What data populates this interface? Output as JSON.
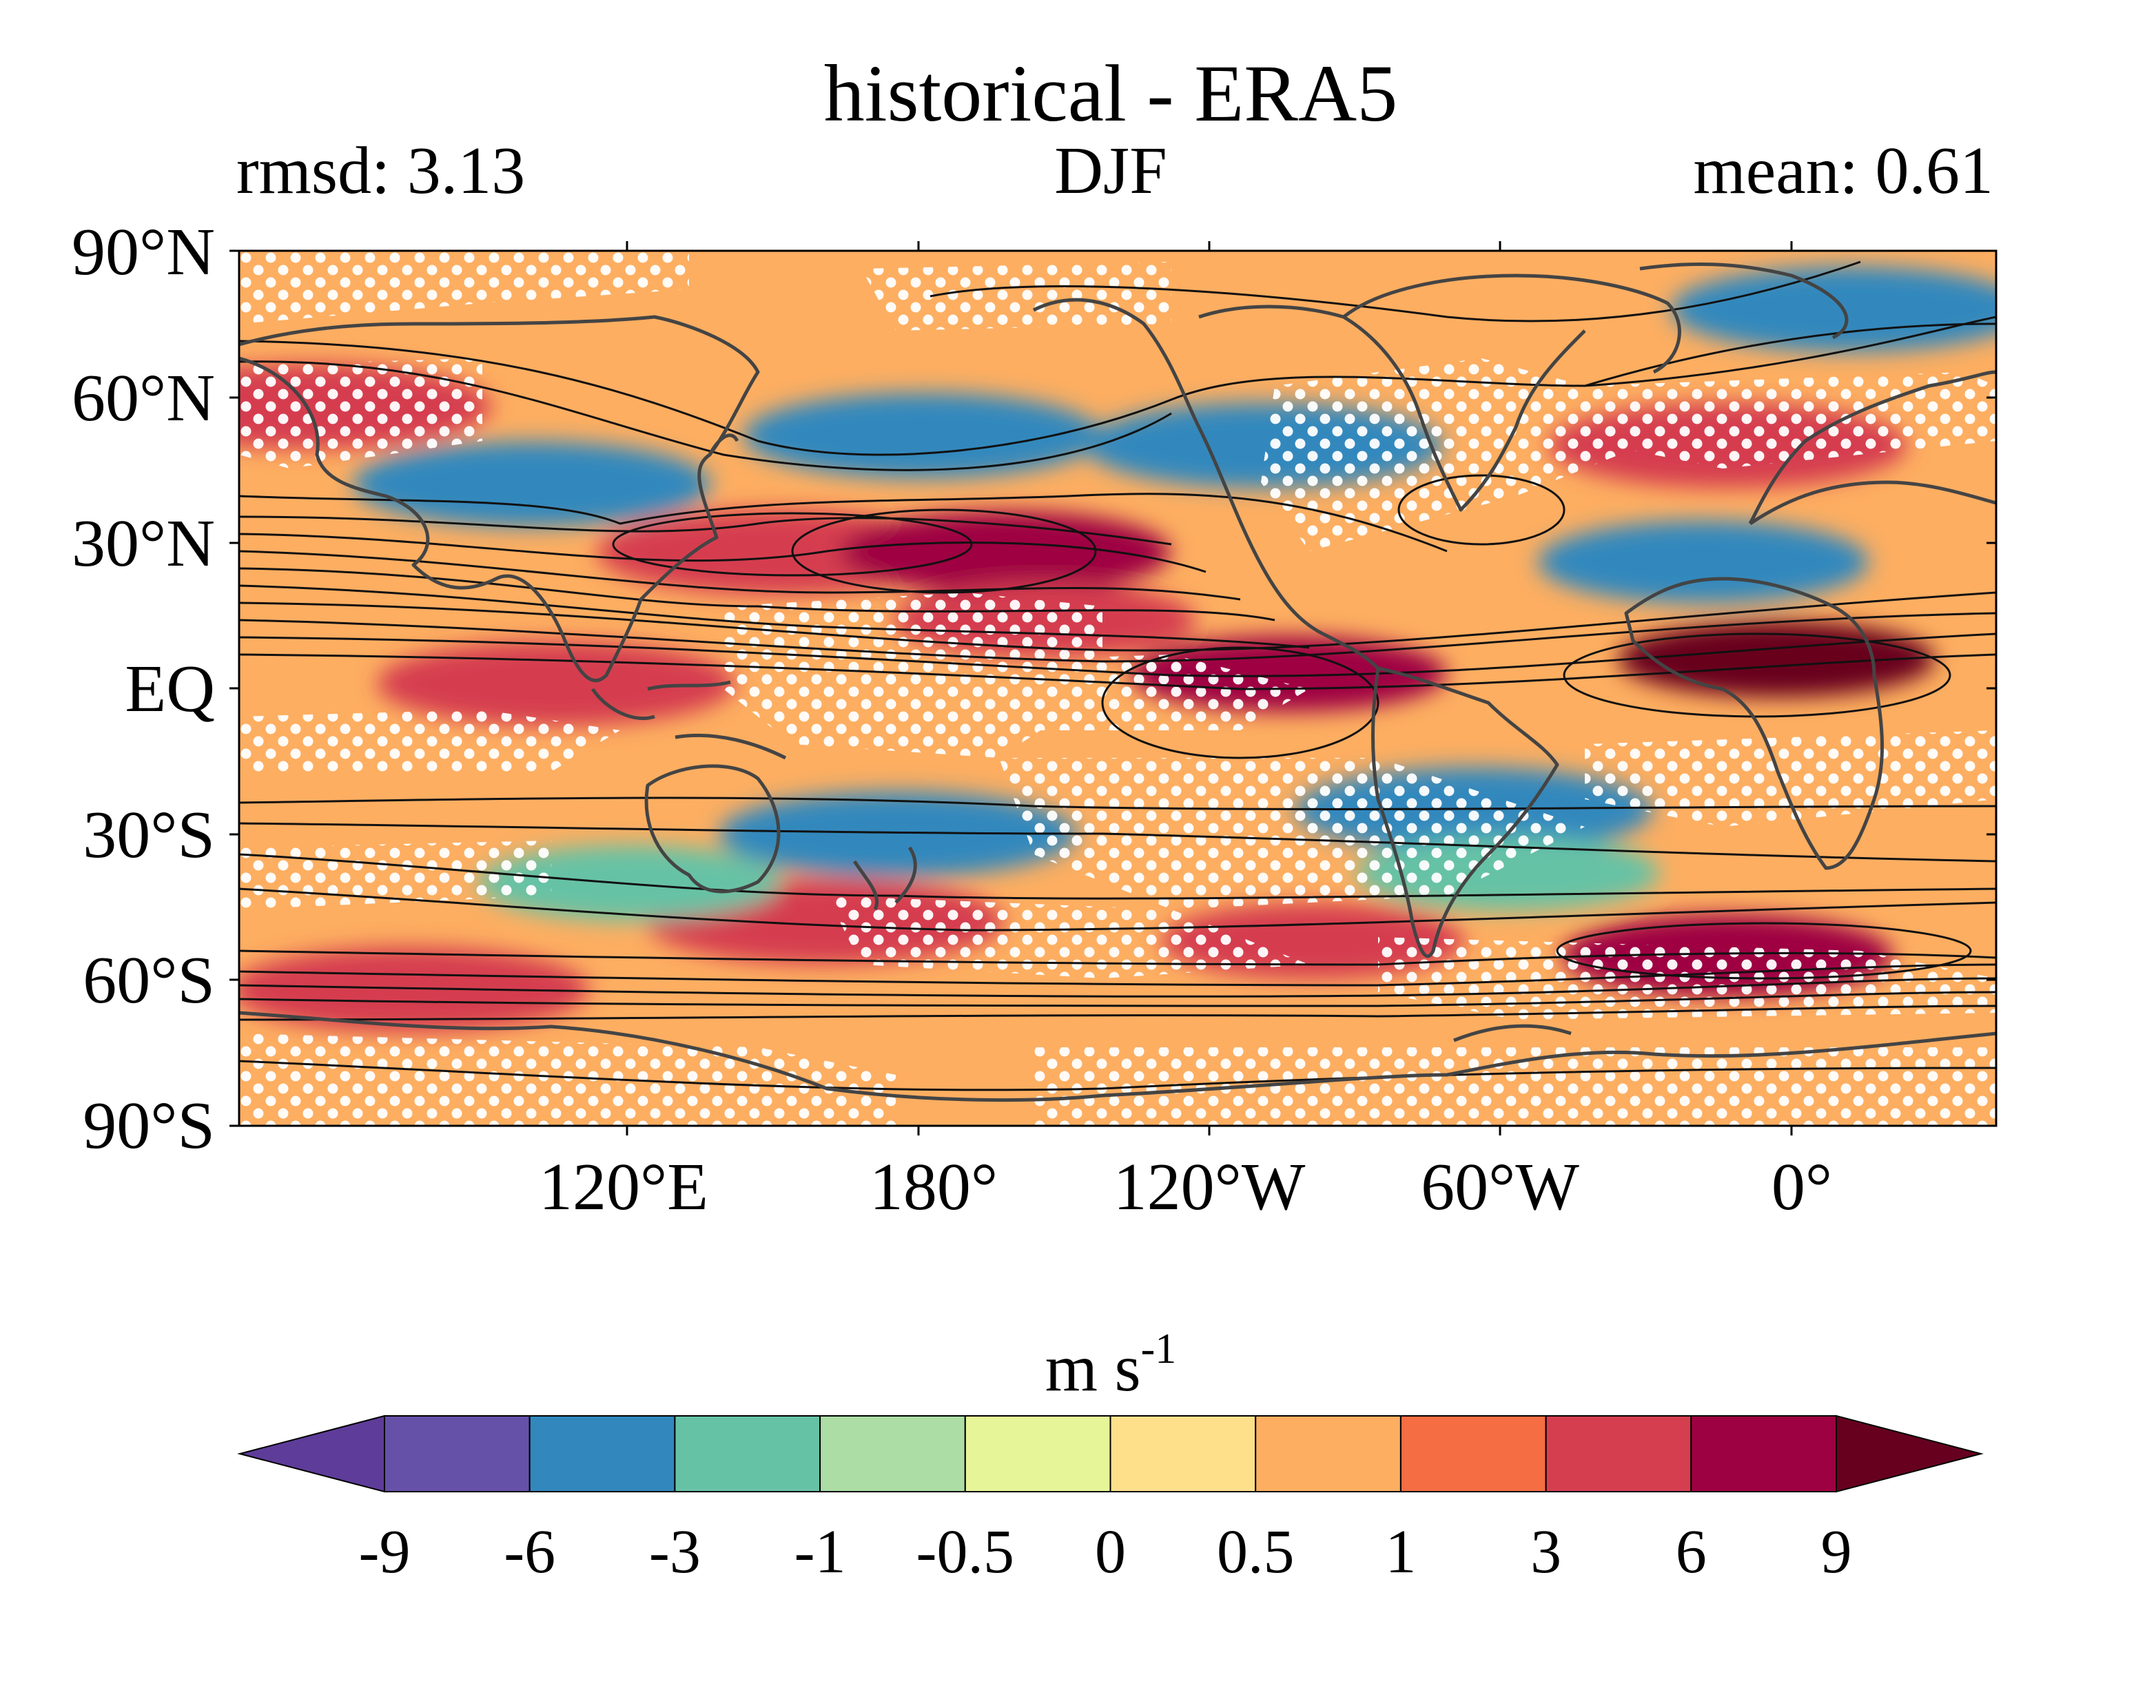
{
  "header": {
    "title": "historical - ERA5",
    "left": "rmsd: 3.13",
    "center": "DJF",
    "right": "mean: 0.61"
  },
  "map": {
    "lat_ticks": [
      "90°N",
      "60°N",
      "30°N",
      "EQ",
      "30°S",
      "60°S",
      "90°S"
    ],
    "lon_ticks": [
      "120°E",
      "180°",
      "120°W",
      "60°W",
      "0°"
    ],
    "lon_range": [
      40,
      400
    ],
    "lat_range": [
      -90,
      90
    ],
    "stippling": "white dots",
    "contours": "black lines"
  },
  "colorbar": {
    "unit_base": "m s",
    "unit_exp": "-1",
    "tick_labels": [
      "-9",
      "-6",
      "-3",
      "-1",
      "-0.5",
      "0",
      "0.5",
      "1",
      "3",
      "6",
      "9"
    ],
    "colors": [
      "#5e3c99",
      "#6651a8",
      "#3288bd",
      "#66c2a5",
      "#abdda4",
      "#e6f598",
      "#fee08b",
      "#fdae61",
      "#f46d43",
      "#d53e4f",
      "#9e0142",
      "#67001f"
    ],
    "extend": "both"
  },
  "chart_data": {
    "type": "heatmap",
    "title": "historical - ERA5",
    "season": "DJF",
    "rmsd": 3.13,
    "mean": 0.61,
    "units": "m s-1",
    "levels": [
      -9,
      -6,
      -3,
      -1,
      -0.5,
      0,
      0.5,
      1,
      3,
      6,
      9
    ],
    "xlim": [
      40,
      400
    ],
    "ylim": [
      -90,
      90
    ],
    "anomalies": [
      {
        "lon": 105,
        "lat": 1,
        "value": 4
      },
      {
        "lon": 150,
        "lat": 28,
        "value": 4
      },
      {
        "lon": 197,
        "lat": 28,
        "value": 7
      },
      {
        "lon": 255,
        "lat": 3,
        "value": 8
      },
      {
        "lon": 355,
        "lat": 6,
        "value": 9
      },
      {
        "lon": 345,
        "lat": 50,
        "value": 5
      },
      {
        "lon": 205,
        "lat": 14,
        "value": 3
      },
      {
        "lon": 250,
        "lat": 50,
        "value": -4
      },
      {
        "lon": 100,
        "lat": 42,
        "value": -4
      },
      {
        "lon": 180,
        "lat": 52,
        "value": -4
      },
      {
        "lon": 340,
        "lat": 26,
        "value": -6
      },
      {
        "lon": 370,
        "lat": 78,
        "value": -4
      },
      {
        "lon": 175,
        "lat": -30,
        "value": -4
      },
      {
        "lon": 293,
        "lat": -25,
        "value": -4
      },
      {
        "lon": 300,
        "lat": -38,
        "value": -3
      },
      {
        "lon": 160,
        "lat": -48,
        "value": 5
      },
      {
        "lon": 345,
        "lat": -55,
        "value": 6
      },
      {
        "lon": 75,
        "lat": -62,
        "value": 5
      },
      {
        "lon": 55,
        "lat": 58,
        "value": 4
      },
      {
        "lon": 260,
        "lat": -52,
        "value": 3
      },
      {
        "lon": 120,
        "lat": -40,
        "value": -3
      }
    ]
  }
}
